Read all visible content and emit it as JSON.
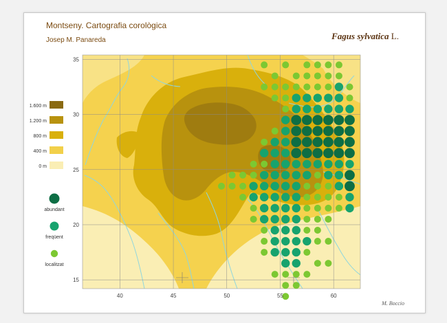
{
  "header": {
    "title": "Montseny. Cartografia corològica",
    "author": "Josep M. Panareda",
    "species_genus": "Fagus sylvatica",
    "species_author": "L.",
    "signature": "M. Boccio"
  },
  "axes": {
    "x_ticks": [
      "40",
      "45",
      "50",
      "55",
      "60"
    ],
    "y_ticks": [
      "35",
      "30",
      "25",
      "20",
      "15"
    ],
    "x_range": [
      36.5,
      62.5
    ],
    "y_range": [
      14.2,
      35.4
    ]
  },
  "legend": {
    "elevation": [
      {
        "label": "1.600 m",
        "color": "#8a6a12"
      },
      {
        "label": "1.200 m",
        "color": "#b8920e"
      },
      {
        "label": "800 m",
        "color": "#d9b00c"
      },
      {
        "label": "400 m",
        "color": "#f2d04a"
      },
      {
        "label": "0 m",
        "color": "#faeeb4"
      }
    ],
    "abundance": [
      {
        "label": "abundant",
        "color": "#0d6e45",
        "level": 3
      },
      {
        "label": "freqüent",
        "color": "#17a36e",
        "level": 2
      },
      {
        "label": "localitzat",
        "color": "#7cc832",
        "level": 1
      }
    ]
  },
  "map_data": {
    "type": "grid-occurrence",
    "x_start": 45.5,
    "y_top": 34.5,
    "rows": [
      "........1.1.1111.....1.11",
      ".........1.11111.1.......",
      "........11111112111......",
      ".........1122222111......",
      "..........12222221.......",
      "..........233333332.1....",
      ".........12333333332.....",
      "........1223333333332....",
      "........22233333333332...",
      ".......112222222222222...",
      ".....1112222212233333332.",
      "....1112222211123333333222.",
      "......122222111123333333211",
      ".......1222211112233333321",
      ".......12222111..22323322..",
      "........122211....22222...",
      "........1222211...1...2...",
      "........12221.......1.....",
      "..........22.11...........",
      ".........1111.............",
      "..........11..............",
      "..........1..............."
    ]
  }
}
